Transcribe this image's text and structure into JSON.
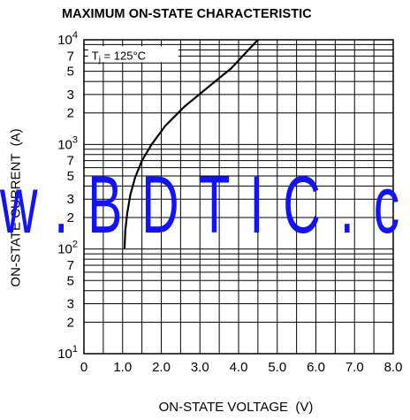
{
  "chart_data": {
    "type": "line",
    "title": "MAXIMUM ON-STATE CHARACTERISTIC",
    "xlabel": "ON-STATE VOLTAGE  (V)",
    "ylabel": "ON-STATE CURRENT  (A)",
    "xlim": [
      0,
      8.0
    ],
    "ylim": [
      10,
      10000
    ],
    "yscale": "log",
    "grid": true,
    "x_ticks": [
      "0",
      "1.0",
      "2.0",
      "3.0",
      "4.0",
      "5.0",
      "6.0",
      "7.0",
      "8.0"
    ],
    "y_ticks": [
      {
        "mantissa": "10",
        "exp": "1",
        "value": 10
      },
      {
        "mantissa": "2",
        "exp": "",
        "value": 20
      },
      {
        "mantissa": "3",
        "exp": "",
        "value": 30
      },
      {
        "mantissa": "5",
        "exp": "",
        "value": 50
      },
      {
        "mantissa": "7",
        "exp": "",
        "value": 70
      },
      {
        "mantissa": "10",
        "exp": "2",
        "value": 100
      },
      {
        "mantissa": "2",
        "exp": "",
        "value": 200
      },
      {
        "mantissa": "3",
        "exp": "",
        "value": 300
      },
      {
        "mantissa": "5",
        "exp": "",
        "value": 500
      },
      {
        "mantissa": "7",
        "exp": "",
        "value": 700
      },
      {
        "mantissa": "10",
        "exp": "3",
        "value": 1000
      },
      {
        "mantissa": "2",
        "exp": "",
        "value": 2000
      },
      {
        "mantissa": "3",
        "exp": "",
        "value": 3000
      },
      {
        "mantissa": "5",
        "exp": "",
        "value": 5000
      },
      {
        "mantissa": "7",
        "exp": "",
        "value": 7000
      },
      {
        "mantissa": "10",
        "exp": "4",
        "value": 10000
      }
    ],
    "annotation": "Tj = 125°C",
    "series": [
      {
        "x": [
          1.05,
          1.07,
          1.12,
          1.2,
          1.32,
          1.5,
          1.75,
          2.1,
          2.6,
          3.2,
          3.8,
          4.5
        ],
        "y": [
          100,
          150,
          220,
          330,
          480,
          700,
          1000,
          1500,
          2300,
          3500,
          5300,
          10000
        ]
      }
    ]
  },
  "watermark": "w.BDTIC.c",
  "colors": {
    "curve": "#000000",
    "grid": "#000000",
    "watermark": "#1212ff"
  }
}
